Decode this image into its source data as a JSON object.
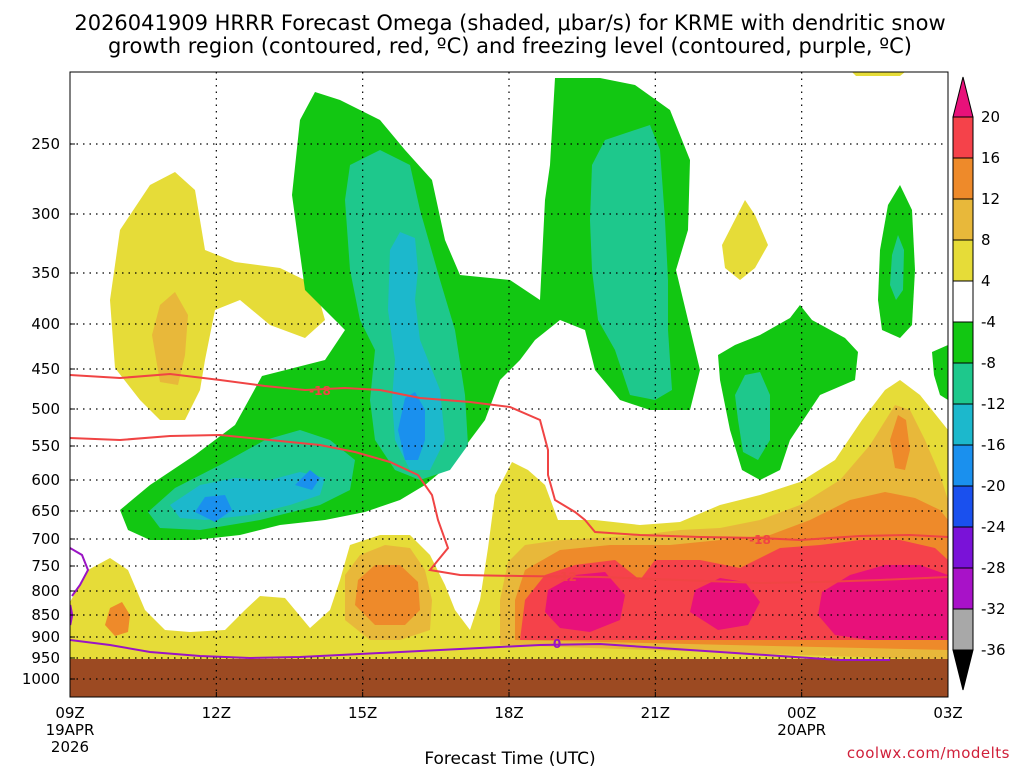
{
  "title": {
    "line1": "2026041909 HRRR Forecast Omega (shaded, μbar/s) for KRME with dendritic snow",
    "line2": "growth region (contoured, red, ºC) and freezing level (contoured, purple, ºC)"
  },
  "credit": "coolwx.com/modelts",
  "chart_data": {
    "type": "heatmap",
    "title": "2026041909 HRRR Forecast Omega (shaded, μbar/s) for KRME with dendritic snow growth region (contoured, red, ºC) and freezing level (contoured, purple, ºC)",
    "xlabel": "Forecast Time (UTC)",
    "ylabel": "",
    "x_range_hours_after_09Z_19APR2026": [
      0,
      18
    ],
    "y_axis": "pressure (mb), inverted",
    "y_ticks": [
      "250",
      "300",
      "350",
      "400",
      "450",
      "500",
      "550",
      "600",
      "650",
      "700",
      "750",
      "800",
      "850",
      "900",
      "950",
      "1000"
    ],
    "x_ticks": [
      {
        "label": "09Z",
        "date1": "19APR",
        "date2": "2026"
      },
      {
        "label": "12Z",
        "date1": "",
        "date2": ""
      },
      {
        "label": "15Z",
        "date1": "",
        "date2": ""
      },
      {
        "label": "18Z",
        "date1": "",
        "date2": ""
      },
      {
        "label": "21Z",
        "date1": "",
        "date2": ""
      },
      {
        "label": "00Z",
        "date1": "20APR",
        "date2": ""
      },
      {
        "label": "03Z",
        "date1": "",
        "date2": ""
      }
    ],
    "grid": true,
    "colorbar": {
      "labels": [
        "20",
        "16",
        "12",
        "8",
        "4",
        "-4",
        "-8",
        "-12",
        "-16",
        "-20",
        "-24",
        "-28",
        "-32",
        "-36"
      ],
      "colors": {
        "gt20": "#e8117a",
        "16_20": "#f5424a",
        "12_16": "#ee8a2a",
        "8_12": "#e8b83a",
        "4_8": "#e6dc38",
        "m4_4": "#ffffff",
        "m8_m4": "#12c712",
        "m12_m8": "#1ec88c",
        "m16_m12": "#1cb8cc",
        "m20_m16": "#1a90ee",
        "m24_m20": "#1a50ee",
        "m28_m24": "#7a12d8",
        "m32_m28": "#a812c8",
        "m36_m32": "#a8a8a8",
        "lt36": "#000000"
      }
    },
    "contours": [
      {
        "name": "-18",
        "color": "#f04444",
        "labels": [
          "-18",
          "-18"
        ]
      },
      {
        "name": "-12",
        "color": "#f04444",
        "labels": [
          "-12"
        ]
      },
      {
        "name": "0",
        "color": "#9a14c4",
        "labels": [
          "0"
        ]
      }
    ],
    "ground_color": "#9c4a22"
  }
}
